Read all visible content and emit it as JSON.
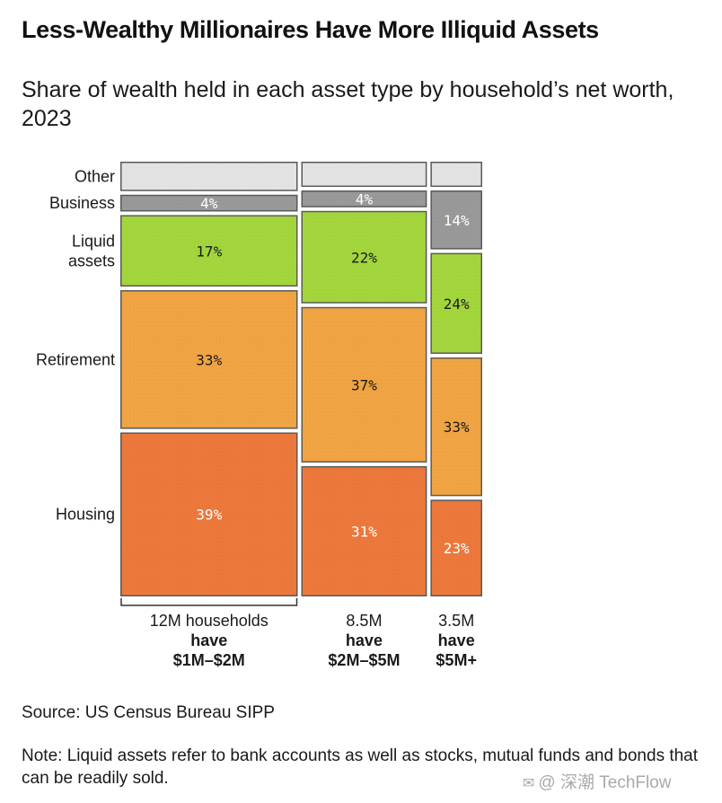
{
  "title": "Less-Wealthy Millionaires Have More Illiquid Assets",
  "subtitle": "Share of wealth held in each asset type by household’s net worth, 2023",
  "chart_data": {
    "type": "marimekko",
    "categories_order": [
      "Other",
      "Business",
      "Liquid assets",
      "Retirement",
      "Housing"
    ],
    "category_labels": [
      {
        "name": "Other",
        "lines": [
          "Other"
        ]
      },
      {
        "name": "Business",
        "lines": [
          "Business"
        ]
      },
      {
        "name": "Liquid assets",
        "lines": [
          "Liquid",
          "assets"
        ]
      },
      {
        "name": "Retirement",
        "lines": [
          "Retirement"
        ]
      },
      {
        "name": "Housing",
        "lines": [
          "Housing"
        ]
      }
    ],
    "colors": {
      "Other": "#e3e3e3",
      "Business": "#999999",
      "Liquid assets": "#a3d63c",
      "Retirement": "#f0a443",
      "Housing": "#ec783c"
    },
    "columns": [
      {
        "households_millions": 12,
        "label_lines": [
          "12M households",
          "have",
          "$1M–$2M"
        ],
        "segments": [
          {
            "category": "Other",
            "value": 7,
            "label": ""
          },
          {
            "category": "Business",
            "value": 4,
            "label": "4%"
          },
          {
            "category": "Liquid assets",
            "value": 17,
            "label": "17%"
          },
          {
            "category": "Retirement",
            "value": 33,
            "label": "33%"
          },
          {
            "category": "Housing",
            "value": 39,
            "label": "39%"
          }
        ]
      },
      {
        "households_millions": 8.5,
        "label_lines": [
          "8.5M",
          "have",
          "$2M–$5M"
        ],
        "segments": [
          {
            "category": "Other",
            "value": 6,
            "label": ""
          },
          {
            "category": "Business",
            "value": 4,
            "label": "4%"
          },
          {
            "category": "Liquid assets",
            "value": 22,
            "label": "22%"
          },
          {
            "category": "Retirement",
            "value": 37,
            "label": "37%"
          },
          {
            "category": "Housing",
            "value": 31,
            "label": "31%"
          }
        ]
      },
      {
        "households_millions": 3.5,
        "label_lines": [
          "3.5M",
          "have",
          "$5M+"
        ],
        "segments": [
          {
            "category": "Other",
            "value": 6,
            "label": ""
          },
          {
            "category": "Business",
            "value": 14,
            "label": "14%"
          },
          {
            "category": "Liquid assets",
            "value": 24,
            "label": "24%"
          },
          {
            "category": "Retirement",
            "value": 33,
            "label": "33%"
          },
          {
            "category": "Housing",
            "value": 23,
            "label": "23%"
          }
        ]
      }
    ]
  },
  "source": "Source: US Census Bureau SIPP",
  "note": "Note: Liquid assets refer to bank accounts as well as stocks, mutual funds and bonds that can be readily sold.",
  "watermark": {
    "icon": "wechat-icon",
    "text": "@ 深潮 TechFlow"
  }
}
